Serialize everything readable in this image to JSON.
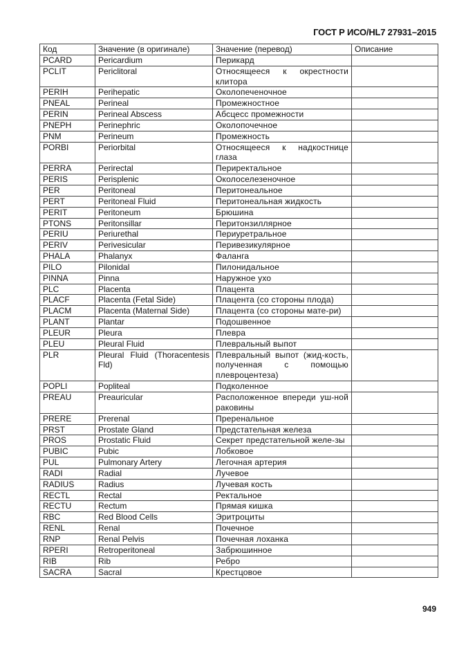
{
  "header": "ГОСТ Р ИСО/HL7 27931–2015",
  "page_number": "949",
  "table": {
    "columns": [
      "Код",
      "Значение (в оригинале)",
      "Значение (перевод)",
      "Описание"
    ],
    "rows": [
      [
        "PCARD",
        "Pericardium",
        "Перикард",
        ""
      ],
      [
        "PCLIT",
        "Periclitoral",
        "Относящееся к окрестности клитора",
        ""
      ],
      [
        "PERIH",
        "Perihepatic",
        "Околопеченочное",
        ""
      ],
      [
        "PNEAL",
        "Perineal",
        "Промежностное",
        ""
      ],
      [
        "PERIN",
        "Perineal Abscess",
        "Абсцесс промежности",
        ""
      ],
      [
        "PNEPH",
        "Perinephric",
        "Околопочечное",
        ""
      ],
      [
        "PNM",
        "Perineum",
        "Промежность",
        ""
      ],
      [
        "PORBI",
        "Periorbital",
        "Относящееся к надкостнице глаза",
        ""
      ],
      [
        "PERRA",
        "Perirectal",
        "Периректальное",
        ""
      ],
      [
        "PERIS",
        "Perisplenic",
        "Околоселезеночное",
        ""
      ],
      [
        "PER",
        "Peritoneal",
        "Перитонеальное",
        ""
      ],
      [
        "PERT",
        "Peritoneal Fluid",
        "Перитонеальная жидкость",
        ""
      ],
      [
        "PERIT",
        "Peritoneum",
        "Брюшина",
        ""
      ],
      [
        "PTONS",
        "Peritonsillar",
        "Перитонзиллярное",
        ""
      ],
      [
        "PERIU",
        "Periurethal",
        "Периуретральное",
        ""
      ],
      [
        "PERIV",
        "Perivesicular",
        "Перивезикулярное",
        ""
      ],
      [
        "PHALA",
        "Phalanyx",
        "Фаланга",
        ""
      ],
      [
        "PILO",
        "Pilonidal",
        "Пилонидальное",
        ""
      ],
      [
        "PINNA",
        "Pinna",
        "Наружное ухо",
        ""
      ],
      [
        "PLC",
        "Placenta",
        "Плацента",
        ""
      ],
      [
        "PLACF",
        "Placenta (Fetal Side)",
        "Плацента (со стороны плода)",
        ""
      ],
      [
        "PLACM",
        "Placenta (Maternal Side)",
        "Плацента (со стороны мате-ри)",
        ""
      ],
      [
        "PLANT",
        "Plantar",
        "Подошвенное",
        ""
      ],
      [
        "PLEUR",
        "Pleura",
        "Плевра",
        ""
      ],
      [
        "PLEU",
        "Pleural Fluid",
        "Плевральный выпот",
        ""
      ],
      [
        "PLR",
        "Pleural Fluid (Thoracentesis Fld)",
        "Плевральный выпот (жид-кость, полученная с помощью плевроцентеза)",
        ""
      ],
      [
        "POPLI",
        "Popliteal",
        "Подколенное",
        ""
      ],
      [
        "PREAU",
        "Preauricular",
        "Расположенное впереди уш-ной раковины",
        ""
      ],
      [
        "PRERE",
        "Prerenal",
        "Преренальное",
        ""
      ],
      [
        "PRST",
        "Prostate Gland",
        "Предстательная железа",
        ""
      ],
      [
        "PROS",
        "Prostatic Fluid",
        "Секрет предстательной желе-зы",
        ""
      ],
      [
        "PUBIC",
        "Pubic",
        "Лобковое",
        ""
      ],
      [
        "PUL",
        "Pulmonary Artery",
        "Легочная артерия",
        ""
      ],
      [
        "RADI",
        "Radial",
        "Лучевое",
        ""
      ],
      [
        "RADIUS",
        "Radius",
        "Лучевая кость",
        ""
      ],
      [
        "RECTL",
        "Rectal",
        "Ректальное",
        ""
      ],
      [
        "RECTU",
        "Rectum",
        "Прямая кишка",
        ""
      ],
      [
        "RBC",
        "Red Blood Cells",
        "Эритроциты",
        ""
      ],
      [
        "RENL",
        "Renal",
        "Почечное",
        ""
      ],
      [
        "RNP",
        "Renal Pelvis",
        "Почечная лоханка",
        ""
      ],
      [
        "RPERI",
        "Retroperitoneal",
        "Забрюшинное",
        ""
      ],
      [
        "RIB",
        "Rib",
        "Ребро",
        ""
      ],
      [
        "SACRA",
        "Sacral",
        "Крестцовое",
        ""
      ]
    ]
  }
}
